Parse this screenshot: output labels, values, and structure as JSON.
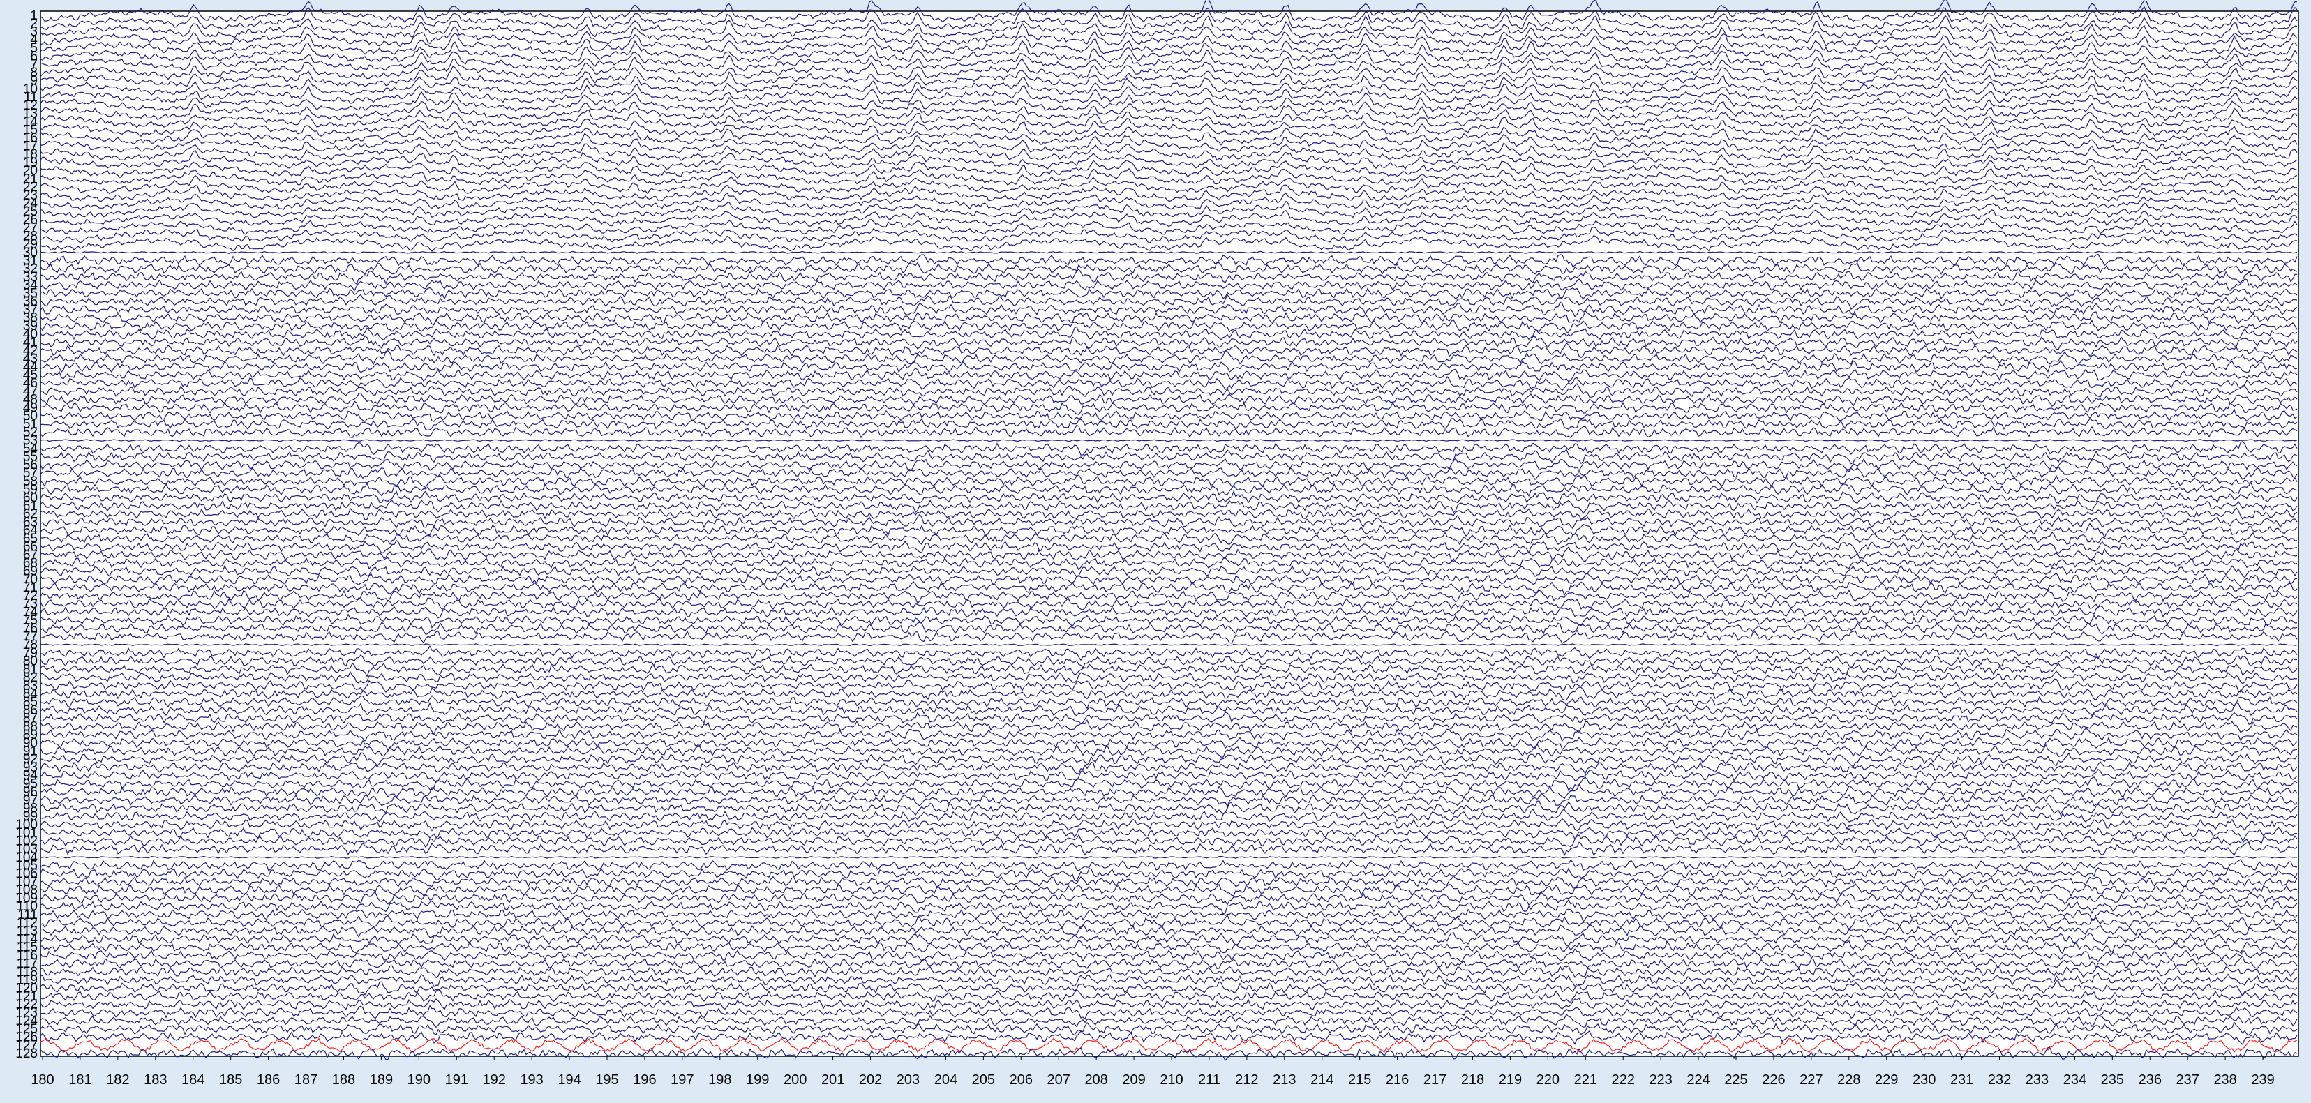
{
  "viewer": {
    "trace_color": "#1c1c80",
    "marker_trace_color": "#ff2020",
    "plot_background": "#ffffff",
    "app_background": "#ddeaf6",
    "marker_channel": 127
  },
  "channels": {
    "count": 128,
    "labels": [
      "1",
      "2",
      "3",
      "4",
      "5",
      "6",
      "7",
      "8",
      "9",
      "10",
      "11",
      "12",
      "13",
      "14",
      "15",
      "16",
      "17",
      "18",
      "19",
      "20",
      "21",
      "22",
      "23",
      "24",
      "25",
      "26",
      "27",
      "28",
      "29",
      "30",
      "31",
      "32",
      "33",
      "34",
      "35",
      "36",
      "37",
      "38",
      "39",
      "40",
      "41",
      "42",
      "43",
      "44",
      "45",
      "46",
      "47",
      "48",
      "49",
      "50",
      "51",
      "52",
      "53",
      "54",
      "55",
      "56",
      "57",
      "58",
      "59",
      "60",
      "61",
      "62",
      "63",
      "64",
      "65",
      "66",
      "67",
      "68",
      "69",
      "70",
      "71",
      "72",
      "73",
      "74",
      "75",
      "76",
      "77",
      "78",
      "79",
      "80",
      "81",
      "82",
      "83",
      "84",
      "85",
      "86",
      "87",
      "88",
      "89",
      "90",
      "91",
      "92",
      "93",
      "94",
      "95",
      "96",
      "97",
      "98",
      "99",
      "100",
      "101",
      "102",
      "103",
      "104",
      "105",
      "106",
      "107",
      "108",
      "109",
      "110",
      "111",
      "112",
      "113",
      "114",
      "115",
      "116",
      "117",
      "118",
      "119",
      "120",
      "121",
      "122",
      "123",
      "124",
      "125",
      "126",
      "127",
      "128"
    ]
  },
  "time_axis": {
    "start": 180,
    "end": 240,
    "tick_labels": [
      "180",
      "181",
      "182",
      "183",
      "184",
      "185",
      "186",
      "187",
      "188",
      "189",
      "190",
      "191",
      "192",
      "193",
      "194",
      "195",
      "196",
      "197",
      "198",
      "199",
      "200",
      "201",
      "202",
      "203",
      "204",
      "205",
      "206",
      "207",
      "208",
      "209",
      "210",
      "211",
      "212",
      "213",
      "214",
      "215",
      "216",
      "217",
      "218",
      "219",
      "220",
      "221",
      "222",
      "223",
      "224",
      "225",
      "226",
      "227",
      "228",
      "229",
      "230",
      "231",
      "232",
      "233",
      "234",
      "235",
      "236",
      "237",
      "238",
      "239"
    ]
  }
}
